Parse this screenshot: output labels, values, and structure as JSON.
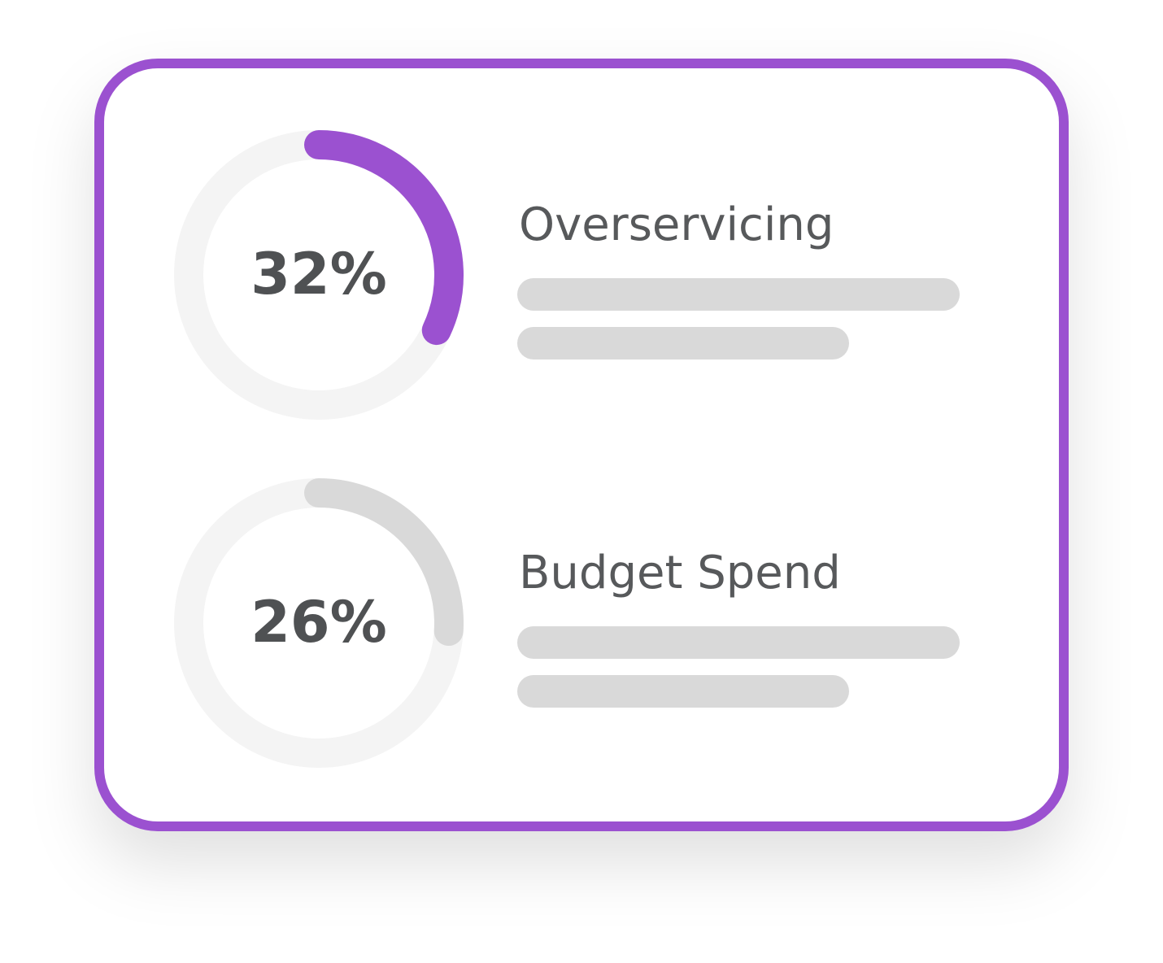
{
  "items": [
    {
      "value": 32,
      "value_label": "32%",
      "label": "Overservicing",
      "color": "#9b51d0"
    },
    {
      "value": 26,
      "value_label": "26%",
      "label": "Budget Spend",
      "color": "#d9d9d9"
    }
  ]
}
